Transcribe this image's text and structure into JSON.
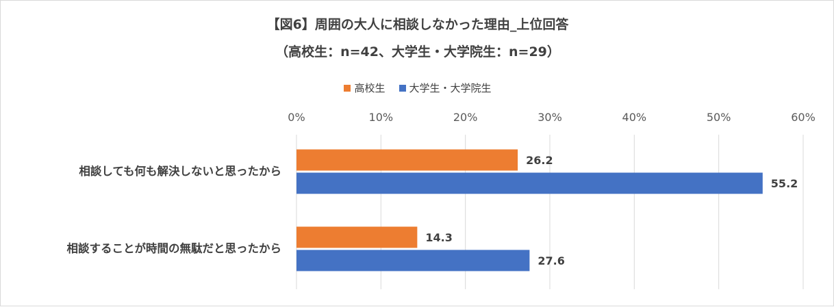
{
  "chart_data": {
    "type": "bar",
    "orientation": "horizontal",
    "title": "【図6】周囲の大人に相談しなかった理由_上位回答",
    "subtitle": "（高校生：n=42、大学生・大学院生：n=29）",
    "categories": [
      "相談しても何も解決しないと思ったから",
      "相談することが時間の無駄だと思ったから"
    ],
    "series": [
      {
        "name": "高校生",
        "color": "#ed7d31",
        "values": [
          26.2,
          14.3
        ]
      },
      {
        "name": "大学生・大学院生",
        "color": "#4472c4",
        "values": [
          55.2,
          27.6
        ]
      }
    ],
    "xlim": [
      0,
      60
    ],
    "xticks": [
      "0%",
      "10%",
      "20%",
      "30%",
      "40%",
      "50%",
      "60%"
    ],
    "grid": true,
    "legend_position": "top"
  }
}
